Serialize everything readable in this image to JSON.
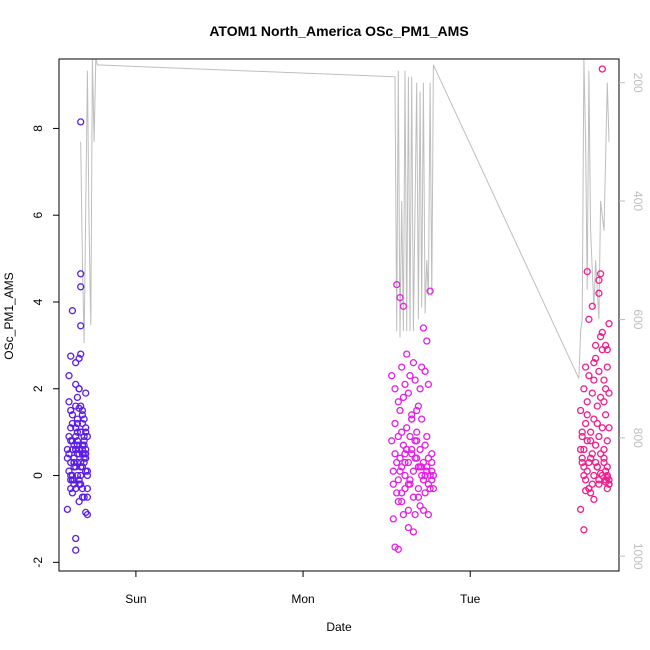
{
  "chart_data": {
    "type": "scatter",
    "title": "ATOM1 North_America OSc_PM1_AMS",
    "xlabel": "Date",
    "ylabel": "OSc_PM1_AMS",
    "x_ticks": [
      "Sun",
      "Mon",
      "Tue"
    ],
    "y_ticks": [
      -2,
      0,
      2,
      4,
      6,
      8
    ],
    "ylim": [
      -2.2,
      9.6
    ],
    "xlim_days": [
      -0.46,
      2.89
    ],
    "right_axis_label": "",
    "right_ticks": [
      200,
      400,
      600,
      800,
      1000
    ],
    "right_ylim": [
      1025,
      160
    ],
    "grid": false,
    "legend": "none",
    "colors": {
      "early": "#5a1ee6",
      "middle": "#e61ee6",
      "late": "#f01e8c",
      "line": "#bebebe"
    },
    "gray_line": [
      [
        -0.33,
        300
      ],
      [
        -0.32,
        500
      ],
      [
        -0.31,
        640
      ],
      [
        -0.29,
        180
      ],
      [
        -0.28,
        450
      ],
      [
        -0.27,
        610
      ],
      [
        -0.26,
        160
      ],
      [
        -0.25,
        300
      ],
      [
        -0.24,
        160
      ],
      [
        -0.23,
        170
      ],
      [
        1.55,
        190
      ],
      [
        1.56,
        620
      ],
      [
        1.57,
        180
      ],
      [
        1.58,
        630
      ],
      [
        1.59,
        400
      ],
      [
        1.6,
        620
      ],
      [
        1.61,
        180
      ],
      [
        1.62,
        620
      ],
      [
        1.63,
        190
      ],
      [
        1.64,
        620
      ],
      [
        1.65,
        190
      ],
      [
        1.66,
        620
      ],
      [
        1.68,
        200
      ],
      [
        1.69,
        600
      ],
      [
        1.7,
        215
      ],
      [
        1.71,
        580
      ],
      [
        1.72,
        200
      ],
      [
        1.73,
        590
      ],
      [
        1.74,
        500
      ],
      [
        1.75,
        560
      ],
      [
        1.76,
        200
      ],
      [
        1.77,
        560
      ],
      [
        1.78,
        170
      ],
      [
        2.65,
        700
      ],
      [
        2.66,
        620
      ],
      [
        2.67,
        600
      ],
      [
        2.68,
        160
      ],
      [
        2.69,
        300
      ],
      [
        2.7,
        550
      ],
      [
        2.71,
        180
      ],
      [
        2.72,
        450
      ],
      [
        2.74,
        580
      ],
      [
        2.75,
        500
      ],
      [
        2.77,
        600
      ],
      [
        2.78,
        400
      ],
      [
        2.8,
        450
      ],
      [
        2.82,
        200
      ],
      [
        2.83,
        300
      ]
    ],
    "series": [
      {
        "color": "early",
        "x": [
          -0.41,
          -0.4,
          -0.4,
          -0.39,
          -0.39,
          -0.39,
          -0.38,
          -0.38,
          -0.38,
          -0.37,
          -0.37,
          -0.36,
          -0.36,
          -0.36,
          -0.35,
          -0.35,
          -0.34,
          -0.34,
          -0.33,
          -0.33,
          -0.32,
          -0.32,
          -0.31,
          -0.31,
          -0.3,
          -0.3,
          -0.41,
          -0.4,
          -0.39,
          -0.38,
          -0.37,
          -0.36,
          -0.35,
          -0.34,
          -0.33,
          -0.32,
          -0.31,
          -0.3,
          -0.29,
          -0.29,
          -0.4,
          -0.39,
          -0.38,
          -0.37,
          -0.36,
          -0.35,
          -0.34,
          -0.33,
          -0.32,
          -0.31,
          -0.3,
          -0.29,
          -0.38,
          -0.37,
          -0.36,
          -0.35,
          -0.34,
          -0.33,
          -0.32,
          -0.31,
          -0.4,
          -0.39,
          -0.36,
          -0.35,
          -0.34,
          -0.33,
          -0.32,
          -0.31,
          -0.3,
          -0.29,
          -0.38,
          -0.36,
          -0.34,
          -0.33,
          -0.32,
          -0.3,
          -0.37,
          -0.35,
          -0.34,
          -0.33,
          -0.31,
          -0.3,
          -0.33,
          -0.33,
          -0.33,
          -0.33,
          -0.33,
          -0.34,
          -0.34,
          -0.39,
          -0.38,
          -0.32,
          -0.35,
          -0.35,
          -0.31,
          -0.29,
          -0.41,
          -0.37,
          -0.36,
          -0.3,
          -0.29,
          -0.39,
          -0.32
        ],
        "y": [
          -0.78,
          0.1,
          0.5,
          -0.1,
          0.3,
          0.8,
          0.0,
          0.6,
          1.2,
          -0.2,
          0.4,
          0.9,
          -0.3,
          0.2,
          0.7,
          1.3,
          -0.1,
          0.5,
          1.0,
          0.0,
          0.6,
          -0.3,
          0.3,
          0.8,
          1.1,
          0.1,
          0.4,
          0.9,
          1.5,
          -0.4,
          0.2,
          0.6,
          1.2,
          -0.2,
          0.3,
          0.7,
          -0.5,
          0.5,
          0.9,
          0.1,
          1.7,
          0.0,
          1.4,
          -0.1,
          1.6,
          0.8,
          -0.6,
          1.0,
          0.2,
          1.3,
          0.4,
          -0.3,
          -0.1,
          0.7,
          1.1,
          0.3,
          0.6,
          -0.2,
          1.5,
          0.9,
          2.3,
          2.75,
          2.1,
          1.8,
          1.55,
          1.0,
          0.5,
          0.7,
          1.0,
          -0.5,
          3.8,
          2.6,
          2.0,
          1.6,
          1.4,
          1.9,
          0.3,
          0.0,
          -0.2,
          0.2,
          0.5,
          0.6,
          8.15,
          4.65,
          4.35,
          3.45,
          2.8,
          2.7,
          2.0,
          1.1,
          0.8,
          1.2,
          0.5,
          1.0,
          0.4,
          0.0,
          0.6,
          0.3,
          0.6,
          -0.85,
          -0.9,
          -0.3,
          -0.5
        ],
        "extra": [
          [
            -0.36,
            -1.45
          ],
          [
            -0.36,
            -1.72
          ]
        ]
      },
      {
        "color": "middle",
        "x": [
          1.53,
          1.54,
          1.54,
          1.55,
          1.55,
          1.56,
          1.56,
          1.57,
          1.57,
          1.58,
          1.58,
          1.59,
          1.59,
          1.6,
          1.6,
          1.61,
          1.61,
          1.62,
          1.62,
          1.63,
          1.63,
          1.64,
          1.64,
          1.65,
          1.65,
          1.66,
          1.66,
          1.67,
          1.67,
          1.68,
          1.68,
          1.69,
          1.69,
          1.7,
          1.7,
          1.71,
          1.71,
          1.72,
          1.72,
          1.73,
          1.73,
          1.74,
          1.74,
          1.75,
          1.75,
          1.76,
          1.76,
          1.77,
          1.77,
          1.78,
          1.53,
          1.55,
          1.57,
          1.59,
          1.61,
          1.63,
          1.65,
          1.67,
          1.69,
          1.71,
          1.73,
          1.75,
          1.77,
          1.56,
          1.58,
          1.6,
          1.62,
          1.64,
          1.66,
          1.68,
          1.7,
          1.72,
          1.74,
          1.76,
          1.54,
          1.57,
          1.6,
          1.63,
          1.66,
          1.69,
          1.72,
          1.75,
          1.78,
          1.58,
          1.61,
          1.64,
          1.67,
          1.7,
          1.73,
          1.59,
          1.62,
          1.65,
          1.68,
          1.71,
          1.74,
          1.77,
          1.55,
          1.57,
          1.59,
          1.61,
          1.63,
          1.65
        ],
        "y": [
          0.8,
          0.1,
          -0.2,
          0.5,
          1.2,
          -0.4,
          0.3,
          0.9,
          -0.1,
          0.4,
          1.5,
          -0.6,
          0.2,
          0.7,
          1.8,
          -0.3,
          0.0,
          0.6,
          1.1,
          -0.8,
          0.3,
          0.9,
          -0.2,
          0.5,
          1.4,
          -0.5,
          0.1,
          0.8,
          -0.9,
          0.4,
          1.0,
          -0.3,
          0.2,
          0.6,
          -0.7,
          0.0,
          1.3,
          0.3,
          -0.1,
          0.7,
          -0.4,
          0.2,
          0.9,
          -0.2,
          0.4,
          0.0,
          -0.3,
          0.1,
          0.3,
          0.0,
          2.3,
          2.0,
          1.7,
          2.5,
          2.1,
          1.9,
          1.3,
          2.2,
          1.6,
          2.5,
          2.4,
          2.1,
          0.5,
          4.4,
          4.1,
          3.9,
          2.8,
          2.3,
          2.6,
          1.5,
          2.0,
          3.4,
          3.1,
          4.25,
          -1.0,
          -0.6,
          -0.9,
          -1.2,
          -1.3,
          -0.5,
          -0.8,
          -0.9,
          -0.3,
          0.1,
          0.5,
          -0.1,
          0.4,
          0.2,
          0.0,
          1.0,
          0.6,
          1.3,
          0.8,
          0.2,
          0.1,
          -0.1,
          -1.65,
          -1.7,
          -0.4,
          0.3,
          -0.2,
          0.6
        ],
        "extra": []
      },
      {
        "color": "late",
        "x": [
          2.66,
          2.67,
          2.67,
          2.68,
          2.68,
          2.69,
          2.69,
          2.7,
          2.7,
          2.71,
          2.71,
          2.72,
          2.72,
          2.73,
          2.73,
          2.74,
          2.74,
          2.75,
          2.75,
          2.76,
          2.76,
          2.77,
          2.77,
          2.78,
          2.78,
          2.79,
          2.79,
          2.8,
          2.8,
          2.81,
          2.81,
          2.82,
          2.82,
          2.83,
          2.83,
          2.66,
          2.68,
          2.7,
          2.72,
          2.74,
          2.76,
          2.78,
          2.8,
          2.82,
          2.67,
          2.69,
          2.71,
          2.73,
          2.75,
          2.77,
          2.79,
          2.81,
          2.83,
          2.68,
          2.71,
          2.74,
          2.77,
          2.8,
          2.82,
          2.83,
          2.83,
          2.82,
          2.81,
          2.81,
          2.82,
          2.83,
          2.82,
          2.81,
          2.8,
          2.79,
          2.78,
          2.77,
          2.76,
          2.75,
          2.74,
          2.73,
          2.72,
          2.71,
          2.7,
          2.69,
          2.68,
          2.67,
          2.66
        ],
        "y": [
          1.5,
          0.9,
          0.4,
          2.0,
          0.6,
          1.2,
          -0.1,
          1.7,
          0.8,
          2.3,
          0.3,
          1.0,
          -0.4,
          1.9,
          0.5,
          2.6,
          1.3,
          0.7,
          3.0,
          1.6,
          0.2,
          2.4,
          0.9,
          3.2,
          1.8,
          1.1,
          2.9,
          0.6,
          2.2,
          1.4,
          3.0,
          2.5,
          0.8,
          1.9,
          1.1,
          0.6,
          0.2,
          1.4,
          0.8,
          2.2,
          1.2,
          0.5,
          1.7,
          2.9,
          1.0,
          2.5,
          3.6,
          3.9,
          2.7,
          4.2,
          3.3,
          2.0,
          3.5,
          -1.25,
          -0.3,
          -0.55,
          -0.2,
          0.4,
          0.0,
          -0.1,
          -0.2,
          -0.3,
          -0.15,
          0.1,
          -0.05,
          -0.2,
          0.2,
          -0.1,
          0.3,
          0.0,
          0.05,
          -0.1,
          0.2,
          0.3,
          0.0,
          -0.2,
          0.4,
          -0.3,
          0.1,
          -0.35,
          0.0,
          0.3,
          -0.78
        ],
        "extra": [
          [
            2.7,
            4.7
          ],
          [
            2.78,
            4.65
          ],
          [
            2.77,
            4.5
          ],
          [
            2.79,
            9.37
          ]
        ]
      }
    ]
  }
}
